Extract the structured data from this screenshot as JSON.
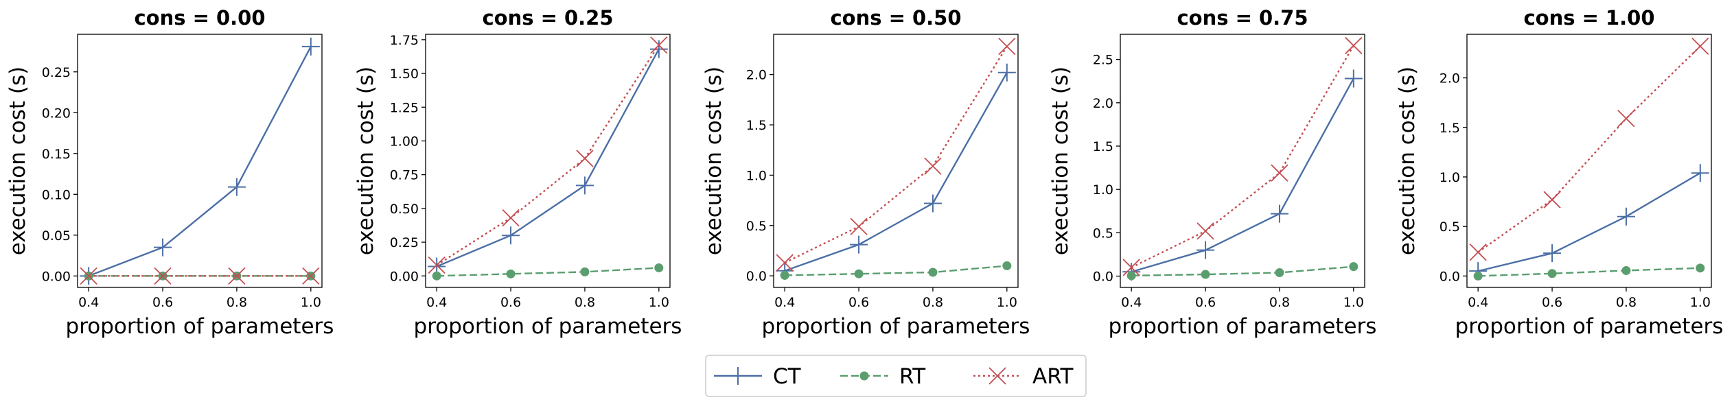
{
  "legend": {
    "entries": [
      {
        "name": "CT",
        "color": "#4c6fa5",
        "marker": "plus",
        "dash": "solid"
      },
      {
        "name": "RT",
        "color": "#5a9e6f",
        "marker": "circle",
        "dash": "dashed"
      },
      {
        "name": "ART",
        "color": "#c44e52",
        "marker": "x",
        "dash": "dotted"
      }
    ],
    "placement": "bottom-center"
  },
  "chart_data": [
    {
      "type": "line",
      "title": "cons = 0.00",
      "xlabel": "proportion of parameters",
      "ylabel": "execution cost (s)",
      "x": [
        0.4,
        0.6,
        0.8,
        1.0
      ],
      "x_ticks": [
        "0.4",
        "0.6",
        "0.8",
        "1.0"
      ],
      "xlim": [
        0.37,
        1.03
      ],
      "ylim": [
        -0.014,
        0.296
      ],
      "y_ticks": [
        "0.00",
        "0.05",
        "0.10",
        "0.15",
        "0.20",
        "0.25"
      ],
      "series": [
        {
          "name": "CT",
          "values": [
            0.0,
            0.035,
            0.109,
            0.281
          ]
        },
        {
          "name": "RT",
          "values": [
            0.0,
            0.0,
            0.0,
            0.0
          ]
        },
        {
          "name": "ART",
          "values": [
            0.0,
            0.0,
            0.0,
            0.0
          ]
        }
      ]
    },
    {
      "type": "line",
      "title": "cons = 0.25",
      "xlabel": "proportion of parameters",
      "ylabel": "execution cost (s)",
      "x": [
        0.4,
        0.6,
        0.8,
        1.0
      ],
      "x_ticks": [
        "0.4",
        "0.6",
        "0.8",
        "1.0"
      ],
      "xlim": [
        0.37,
        1.03
      ],
      "ylim": [
        -0.085,
        1.79
      ],
      "y_ticks": [
        "0.00",
        "0.25",
        "0.50",
        "0.75",
        "1.00",
        "1.25",
        "1.50",
        "1.75"
      ],
      "series": [
        {
          "name": "CT",
          "values": [
            0.07,
            0.3,
            0.67,
            1.68
          ]
        },
        {
          "name": "RT",
          "values": [
            0.0,
            0.015,
            0.03,
            0.06
          ]
        },
        {
          "name": "ART",
          "values": [
            0.08,
            0.43,
            0.87,
            1.71
          ]
        }
      ]
    },
    {
      "type": "line",
      "title": "cons = 0.50",
      "xlabel": "proportion of parameters",
      "ylabel": "execution cost (s)",
      "x": [
        0.4,
        0.6,
        0.8,
        1.0
      ],
      "x_ticks": [
        "0.4",
        "0.6",
        "0.8",
        "1.0"
      ],
      "xlim": [
        0.37,
        1.03
      ],
      "ylim": [
        -0.115,
        2.4
      ],
      "y_ticks": [
        "0.0",
        "0.5",
        "1.0",
        "1.5",
        "2.0"
      ],
      "series": [
        {
          "name": "CT",
          "values": [
            0.05,
            0.31,
            0.72,
            2.02
          ]
        },
        {
          "name": "RT",
          "values": [
            0.005,
            0.02,
            0.035,
            0.1
          ]
        },
        {
          "name": "ART",
          "values": [
            0.13,
            0.49,
            1.09,
            2.28
          ]
        }
      ]
    },
    {
      "type": "line",
      "title": "cons = 0.75",
      "xlabel": "proportion of parameters",
      "ylabel": "execution cost (s)",
      "x": [
        0.4,
        0.6,
        0.8,
        1.0
      ],
      "x_ticks": [
        "0.4",
        "0.6",
        "0.8",
        "1.0"
      ],
      "xlim": [
        0.37,
        1.03
      ],
      "ylim": [
        -0.13,
        2.79
      ],
      "y_ticks": [
        "0.0",
        "0.5",
        "1.0",
        "1.5",
        "2.0",
        "2.5"
      ],
      "series": [
        {
          "name": "CT",
          "values": [
            0.05,
            0.3,
            0.72,
            2.28
          ]
        },
        {
          "name": "RT",
          "values": [
            0.005,
            0.02,
            0.04,
            0.11
          ]
        },
        {
          "name": "ART",
          "values": [
            0.1,
            0.52,
            1.19,
            2.66
          ]
        }
      ]
    },
    {
      "type": "line",
      "title": "cons = 1.00",
      "xlabel": "proportion of parameters",
      "ylabel": "execution cost (s)",
      "x": [
        0.4,
        0.6,
        0.8,
        1.0
      ],
      "x_ticks": [
        "0.4",
        "0.6",
        "0.8",
        "1.0"
      ],
      "xlim": [
        0.37,
        1.03
      ],
      "ylim": [
        -0.115,
        2.44
      ],
      "y_ticks": [
        "0.0",
        "0.5",
        "1.0",
        "1.5",
        "2.0"
      ],
      "series": [
        {
          "name": "CT",
          "values": [
            0.05,
            0.23,
            0.6,
            1.04
          ]
        },
        {
          "name": "RT",
          "values": [
            0.0,
            0.025,
            0.055,
            0.08
          ]
        },
        {
          "name": "ART",
          "values": [
            0.24,
            0.77,
            1.59,
            2.32
          ]
        }
      ]
    }
  ]
}
